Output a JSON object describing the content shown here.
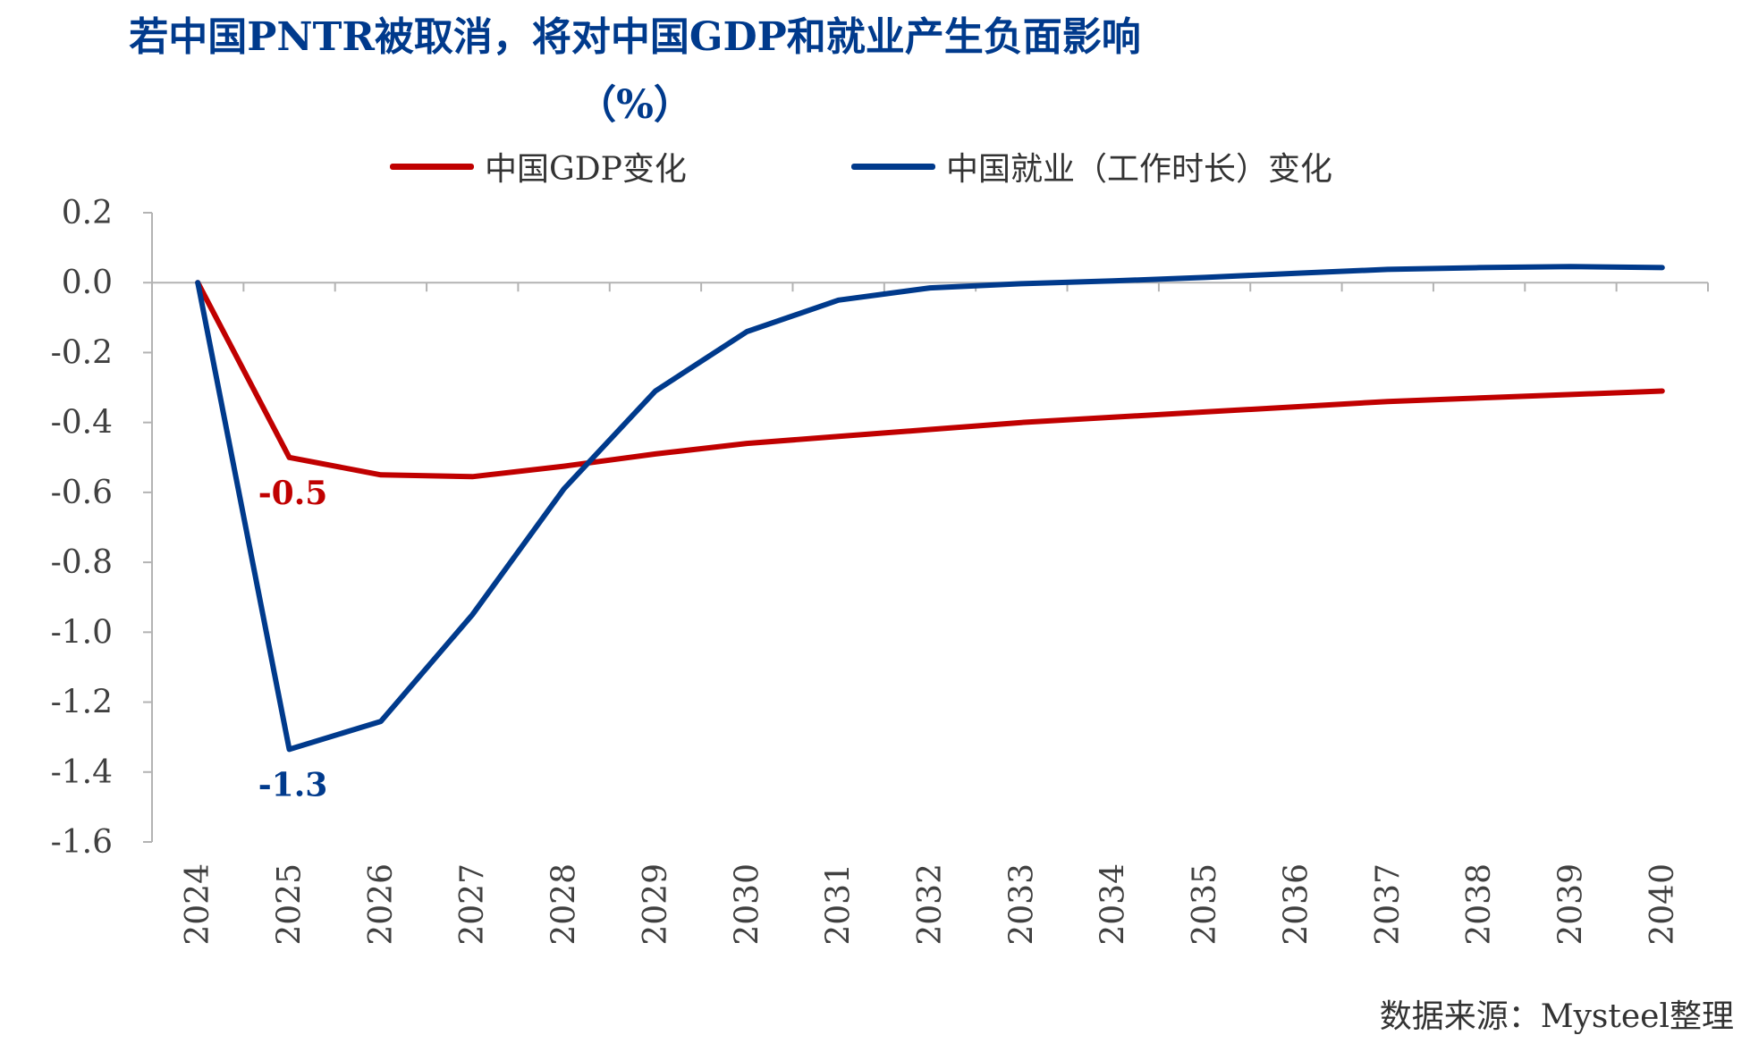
{
  "chart_data": {
    "type": "line",
    "title": "若中国PNTR被取消，将对中国GDP和就业产生负面影响",
    "subtitle": "（%）",
    "categories": [
      "2024",
      "2025",
      "2026",
      "2027",
      "2028",
      "2029",
      "2030",
      "2031",
      "2032",
      "2033",
      "2034",
      "2035",
      "2036",
      "2037",
      "2038",
      "2039",
      "2040"
    ],
    "series": [
      {
        "name": "中国GDP变化",
        "color": "#c00000",
        "values": [
          0,
          -0.5,
          -0.55,
          -0.555,
          -0.525,
          -0.49,
          -0.46,
          -0.44,
          -0.42,
          -0.4,
          -0.385,
          -0.37,
          -0.355,
          -0.34,
          -0.33,
          -0.32,
          -0.31
        ]
      },
      {
        "name": "中国就业（工作时长）变化",
        "color": "#003a8c",
        "values": [
          0,
          -1.335,
          -1.255,
          -0.95,
          -0.59,
          -0.31,
          -0.14,
          -0.05,
          -0.015,
          -0.003,
          0.005,
          0.015,
          0.027,
          0.038,
          0.043,
          0.046,
          0.043
        ]
      }
    ],
    "yticks": [
      "0.2",
      "0.0",
      "-0.2",
      "-0.4",
      "-0.6",
      "-0.8",
      "-1.0",
      "-1.2",
      "-1.4",
      "-1.6"
    ],
    "ylim": [
      -1.6,
      0.2
    ],
    "annotations": [
      {
        "text": "-0.5",
        "series": 0,
        "index": 1,
        "color": "#c00000"
      },
      {
        "text": "-1.3",
        "series": 1,
        "index": 1,
        "color": "#003a8c"
      }
    ],
    "grid": false,
    "legend_position": "top"
  },
  "source": "数据来源：Mysteel整理"
}
